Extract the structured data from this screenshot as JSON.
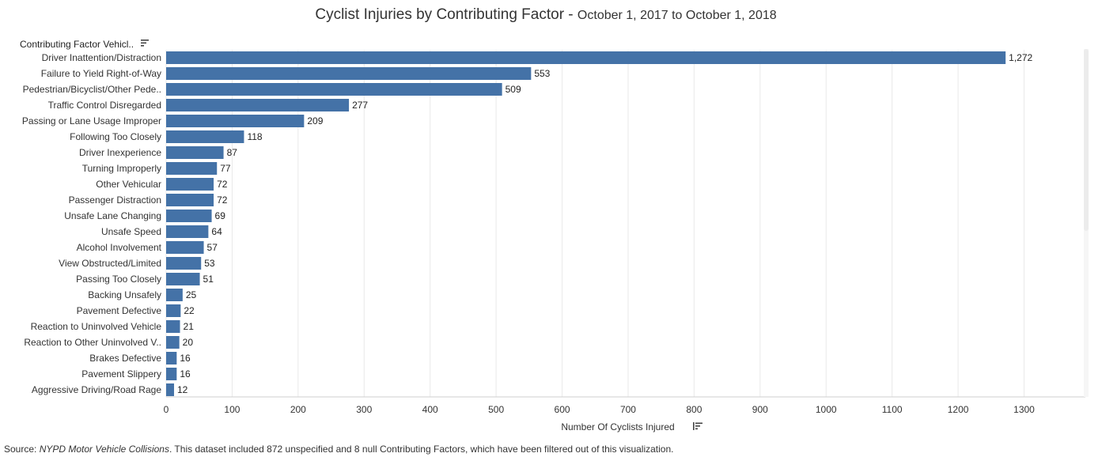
{
  "title": {
    "main": "Cyclist Injuries by Contributing Factor",
    "separator": " - ",
    "subtitle": "October 1, 2017 to October 1, 2018"
  },
  "category_header": "Contributing Factor Vehicl..",
  "source": {
    "prefix": "Source: ",
    "dataset": "NYPD Motor Vehicle Collisions",
    "note": ". This dataset included 872 unspecified and 8 null Contributing Factors, which have been filtered out of this visualization."
  },
  "icons": {
    "category_sort": "sort-lines-icon",
    "value_sort": "sort-descending-icon"
  },
  "colors": {
    "bar": "#4472a7",
    "grid": "#e9e9e9",
    "scrollbar": "#ececec"
  },
  "chart_data": {
    "type": "bar",
    "orientation": "horizontal",
    "title": "Cyclist Injuries by Contributing Factor - October 1, 2017 to October 1, 2018",
    "xlabel": "Number Of Cyclists Injured",
    "ylabel": "Contributing Factor Vehicl..",
    "xlim": [
      0,
      1300
    ],
    "xticks": [
      0,
      100,
      200,
      300,
      400,
      500,
      600,
      700,
      800,
      900,
      1000,
      1100,
      1200,
      1300
    ],
    "grid": true,
    "categories": [
      "Driver Inattention/Distraction",
      "Failure to Yield Right-of-Way",
      "Pedestrian/Bicyclist/Other Pede..",
      "Traffic Control Disregarded",
      "Passing or Lane Usage Improper",
      "Following Too Closely",
      "Driver Inexperience",
      "Turning Improperly",
      "Other Vehicular",
      "Passenger Distraction",
      "Unsafe Lane Changing",
      "Unsafe Speed",
      "Alcohol Involvement",
      "View Obstructed/Limited",
      "Passing Too Closely",
      "Backing Unsafely",
      "Pavement Defective",
      "Reaction to Uninvolved Vehicle",
      "Reaction to Other Uninvolved V..",
      "Brakes Defective",
      "Pavement Slippery",
      "Aggressive Driving/Road Rage"
    ],
    "values": [
      1272,
      553,
      509,
      277,
      209,
      118,
      87,
      77,
      72,
      72,
      69,
      64,
      57,
      53,
      51,
      25,
      22,
      21,
      20,
      16,
      16,
      12
    ],
    "value_labels": [
      "1,272",
      "553",
      "509",
      "277",
      "209",
      "118",
      "87",
      "77",
      "72",
      "72",
      "69",
      "64",
      "57",
      "53",
      "51",
      "25",
      "22",
      "21",
      "20",
      "16",
      "16",
      "12"
    ]
  }
}
